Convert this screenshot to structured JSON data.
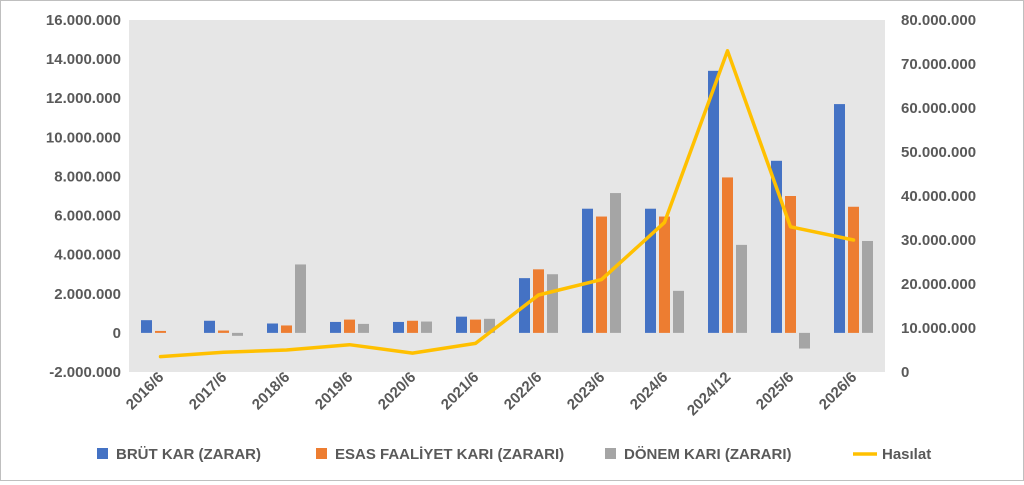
{
  "chart_data": {
    "type": "bar",
    "title": "",
    "categories": [
      "2016/6",
      "2017/6",
      "2018/6",
      "2019/6",
      "2020/6",
      "2021/6",
      "2022/6",
      "2023/6",
      "2024/6",
      "2024/12",
      "2025/6",
      "2026/6"
    ],
    "series": [
      {
        "name": "BRÜT KAR (ZARAR)",
        "type": "bar",
        "axis": "left",
        "color": "#4472C4",
        "values": [
          650000,
          620000,
          480000,
          560000,
          560000,
          830000,
          2800000,
          6350000,
          6350000,
          13400000,
          8800000,
          11700000
        ]
      },
      {
        "name": "ESAS FAALİYET KARI (ZARARI)",
        "type": "bar",
        "axis": "left",
        "color": "#ED7D31",
        "values": [
          100000,
          120000,
          380000,
          680000,
          620000,
          680000,
          3250000,
          5950000,
          5950000,
          7950000,
          7000000,
          6450000
        ]
      },
      {
        "name": "DÖNEM KARI (ZARARI)",
        "type": "bar",
        "axis": "left",
        "color": "#A5A5A5",
        "values": [
          0,
          -150000,
          3500000,
          460000,
          580000,
          720000,
          3000000,
          7150000,
          2150000,
          4500000,
          -800000,
          4700000
        ]
      },
      {
        "name": "Hasılat",
        "type": "line",
        "axis": "right",
        "color": "#FFC000",
        "values": [
          3500000,
          4500000,
          5000000,
          6200000,
          4300000,
          6500000,
          17500000,
          21000000,
          34000000,
          73000000,
          33000000,
          30000000
        ]
      }
    ],
    "y_left": {
      "min": -2000000,
      "max": 16000000,
      "step": 2000000,
      "ticks": [
        "-2.000.000",
        "0",
        "2.000.000",
        "4.000.000",
        "6.000.000",
        "8.000.000",
        "10.000.000",
        "12.000.000",
        "14.000.000",
        "16.000.000"
      ]
    },
    "y_right": {
      "min": 0,
      "max": 80000000,
      "step": 10000000,
      "ticks": [
        "0",
        "10.000.000",
        "20.000.000",
        "30.000.000",
        "40.000.000",
        "50.000.000",
        "60.000.000",
        "70.000.000",
        "80.000.000"
      ]
    },
    "grid": false,
    "legend_position": "bottom",
    "plot_background": "#E6E6E6"
  }
}
